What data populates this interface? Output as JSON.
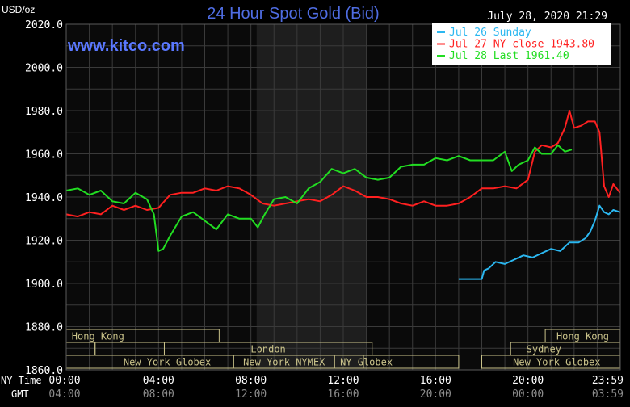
{
  "header": {
    "title": "24 Hour Spot Gold (Bid)",
    "unit": "USD/oz",
    "datetime": "July 28, 2020 21:29",
    "watermark": "www.kitco.com"
  },
  "colors": {
    "background": "#000000",
    "plot_background": "#0a0a0a",
    "grid": "#3a3a3a",
    "shaded_region": "#1e1e1e",
    "title": "#4f6de3",
    "watermark": "#5a78ff",
    "text": "#ffffff",
    "muted_text": "#8c8c8c",
    "session_border": "#c9c28a",
    "sunday": "#2bb7f0",
    "ny_close": "#ff2020",
    "last": "#22dd22"
  },
  "bottom_labels": {
    "ny_time": "NY Time",
    "gmt": "GMT",
    "gmt_ticks": [
      "04:00",
      "08:00",
      "12:00",
      "16:00",
      "20:00",
      "00:00",
      "03:59"
    ]
  },
  "sessions": [
    {
      "name": "Hong Kong",
      "row": 0,
      "start": 0.0,
      "end": 13.25,
      "text_start": 0.0,
      "text_end": 5.5
    },
    {
      "name": "",
      "row": 1,
      "start": 0.0,
      "end": 2.5,
      "text_start": 0.0,
      "text_end": 2.5
    },
    {
      "name": "",
      "row": 1,
      "start": 2.5,
      "end": 8.5,
      "text_start": 2.5,
      "text_end": 8.5
    },
    {
      "name": "London",
      "row": 1,
      "start": 8.5,
      "end": 26.5,
      "text_start": 8.5,
      "text_end": 26.5
    },
    {
      "name": "New York Globex",
      "row": 2,
      "start": 0.0,
      "end": 14.5,
      "text_start": 3.0,
      "text_end": 14.5
    },
    {
      "name": "New York NYMEX",
      "row": 2,
      "start": 14.5,
      "end": 25.75,
      "text_start": 14.5,
      "text_end": 23.25
    },
    {
      "name": "NY Globex",
      "row": 2,
      "start": 23.25,
      "end": 34.0,
      "text_start": 23.25,
      "text_end": 28.75
    },
    {
      "name": "Hong Kong",
      "row": 0,
      "start": 41.5,
      "end": 47.99,
      "text_start": 41.5,
      "text_end": 47.99
    },
    {
      "name": "Sydney",
      "row": 1,
      "start": 38.5,
      "end": 47.99,
      "text_start": 40.0,
      "text_end": 42.75
    },
    {
      "name": "New York Globex",
      "row": 2,
      "start": 36.0,
      "end": 47.99,
      "text_start": 37.0,
      "text_end": 47.99
    }
  ],
  "chart_data": {
    "type": "line",
    "title": "24 Hour Spot Gold (Bid)",
    "ylabel": "USD/oz",
    "xlabel": "NY Time",
    "ylim": [
      1860,
      2020
    ],
    "x_unit": "hours since 00:00 NY Time",
    "xlim": [
      0,
      24
    ],
    "yticks": [
      "2020.0",
      "2000.0",
      "1980.0",
      "1960.0",
      "1940.0",
      "1920.0",
      "1900.0",
      "1880.0",
      "1860.0"
    ],
    "xticks": [
      "00:00",
      "04:00",
      "08:00",
      "12:00",
      "16:00",
      "20:00",
      "23:59"
    ],
    "shaded_x": [
      8.25,
      13.0
    ],
    "grid": true,
    "legend_position": "top-right",
    "series": [
      {
        "name": "Jul 26 Sunday",
        "legend": "Jul 26 Sunday",
        "color": "#2bb7f0",
        "x": [
          17.0,
          18.0,
          18.1,
          18.3,
          18.6,
          19.0,
          19.4,
          19.8,
          20.2,
          20.6,
          21.0,
          21.4,
          21.8,
          22.2,
          22.5,
          22.7,
          22.9,
          23.1,
          23.3,
          23.5,
          23.7,
          23.99
        ],
        "y": [
          1902,
          1902,
          1906,
          1907,
          1910,
          1909,
          1911,
          1913,
          1912,
          1914,
          1916,
          1915,
          1919,
          1919,
          1921,
          1924,
          1929,
          1936,
          1933,
          1932,
          1934,
          1933
        ]
      },
      {
        "name": "Jul 27 NY close",
        "legend": "Jul 27 NY close 1943.80",
        "color": "#ff2020",
        "x": [
          0,
          0.5,
          1.0,
          1.5,
          2.0,
          2.5,
          3.0,
          3.5,
          4.0,
          4.5,
          5.0,
          5.5,
          6.0,
          6.5,
          7.0,
          7.5,
          8.0,
          8.5,
          9.0,
          9.5,
          10.0,
          10.5,
          11.0,
          11.5,
          12.0,
          12.5,
          13.0,
          13.5,
          14.0,
          14.5,
          15.0,
          15.5,
          16.0,
          16.5,
          17.0,
          17.5,
          18.0,
          18.5,
          19.0,
          19.5,
          20.0,
          20.3,
          20.6,
          21.0,
          21.3,
          21.6,
          21.8,
          22.0,
          22.3,
          22.6,
          22.9,
          23.1,
          23.3,
          23.5,
          23.7,
          23.99
        ],
        "y": [
          1932,
          1931,
          1933,
          1932,
          1936,
          1934,
          1936,
          1934,
          1935,
          1941,
          1942,
          1942,
          1944,
          1943,
          1945,
          1944,
          1941,
          1937,
          1936,
          1937,
          1938,
          1939,
          1938,
          1941,
          1945,
          1943,
          1940,
          1940,
          1939,
          1937,
          1936,
          1938,
          1936,
          1936,
          1937,
          1940,
          1944,
          1944,
          1945,
          1944,
          1948,
          1961,
          1964,
          1963,
          1965,
          1972,
          1980,
          1972,
          1973,
          1975,
          1975,
          1970,
          1945,
          1940,
          1946,
          1942
        ]
      },
      {
        "name": "Jul 28 Last",
        "legend": "Jul 28 Last 1961.40",
        "color": "#22dd22",
        "x": [
          0,
          0.5,
          1.0,
          1.5,
          2.0,
          2.5,
          3.0,
          3.5,
          3.8,
          4.0,
          4.2,
          4.5,
          5.0,
          5.5,
          6.0,
          6.5,
          7.0,
          7.5,
          8.0,
          8.3,
          8.6,
          9.0,
          9.5,
          10.0,
          10.5,
          11.0,
          11.5,
          12.0,
          12.5,
          13.0,
          13.5,
          14.0,
          14.5,
          15.0,
          15.5,
          16.0,
          16.5,
          17.0,
          17.5,
          18.0,
          18.5,
          19.0,
          19.3,
          19.6,
          20.0,
          20.3,
          20.6,
          21.0,
          21.3,
          21.6,
          21.9
        ],
        "y": [
          1943,
          1944,
          1941,
          1943,
          1938,
          1937,
          1942,
          1939,
          1932,
          1915,
          1916,
          1922,
          1931,
          1933,
          1929,
          1925,
          1932,
          1930,
          1930,
          1926,
          1932,
          1939,
          1940,
          1937,
          1944,
          1947,
          1953,
          1951,
          1953,
          1949,
          1948,
          1949,
          1954,
          1955,
          1955,
          1958,
          1957,
          1959,
          1957,
          1957,
          1957,
          1961,
          1952,
          1955,
          1957,
          1963,
          1960,
          1960,
          1964,
          1961,
          1962
        ]
      }
    ]
  }
}
